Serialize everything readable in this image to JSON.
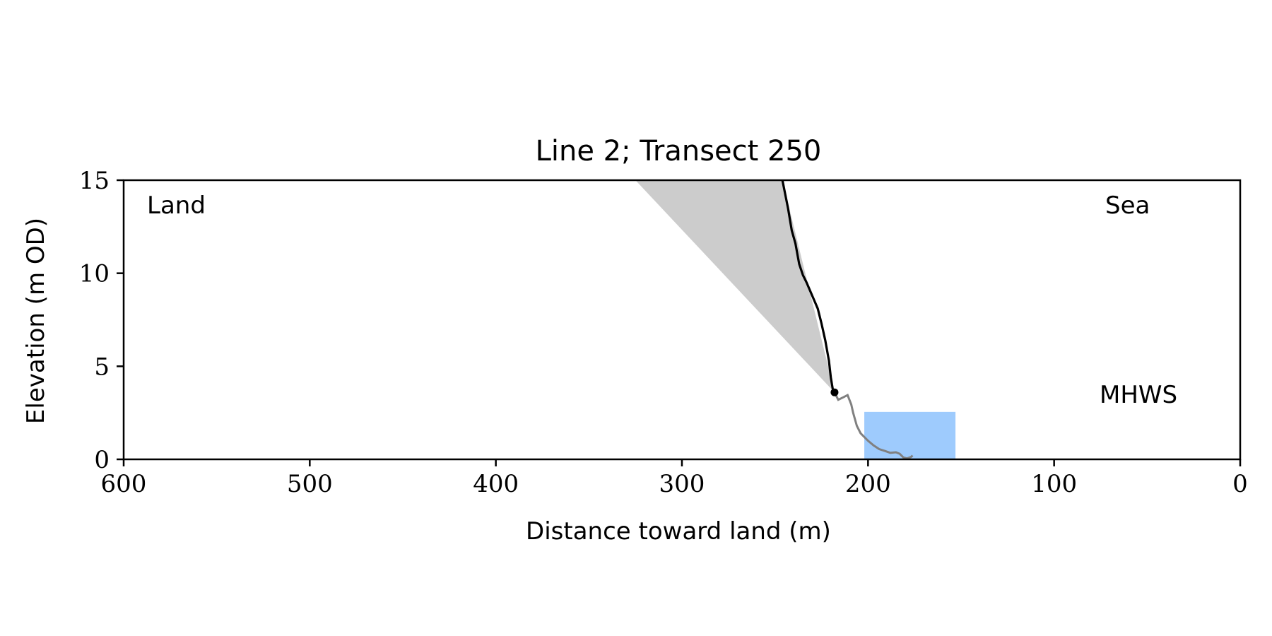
{
  "chart_data": {
    "type": "line",
    "title": "Line 2; Transect 250",
    "xlabel": "Distance toward land (m)",
    "ylabel": "Elevation (m OD)",
    "xlim": [
      600,
      0
    ],
    "ylim": [
      0,
      15
    ],
    "x_ticks": [
      "600",
      "500",
      "400",
      "300",
      "200",
      "100",
      "0"
    ],
    "y_ticks": [
      "0",
      "5",
      "10",
      "15"
    ],
    "grid": false,
    "annotations": {
      "land": "Land",
      "sea": "Sea",
      "mhws": "MHWS"
    },
    "colors": {
      "cliff": "#000000",
      "beach": "#808080",
      "wedge": "#cccccc",
      "water": "#9ecbfd",
      "mhws_text": "#6699cc"
    },
    "series": [
      {
        "name": "",
        "color": "#000000",
        "points": [
          [
            246,
            15
          ],
          [
            243,
            13.5
          ],
          [
            241,
            12.3
          ],
          [
            239,
            11.6
          ],
          [
            237,
            10.5
          ],
          [
            235,
            9.9
          ],
          [
            233,
            9.5
          ],
          [
            230,
            8.8
          ],
          [
            227,
            8.1
          ],
          [
            225,
            7.3
          ],
          [
            223,
            6.4
          ],
          [
            221,
            5.3
          ],
          [
            220,
            4.4
          ],
          [
            219,
            3.8
          ],
          [
            218,
            3.6
          ]
        ]
      },
      {
        "name": "",
        "color": "#808080",
        "points": [
          [
            218,
            3.6
          ],
          [
            216,
            3.2
          ],
          [
            213,
            3.35
          ],
          [
            211,
            3.45
          ],
          [
            209,
            2.95
          ],
          [
            208,
            2.5
          ],
          [
            206,
            1.8
          ],
          [
            204,
            1.4
          ],
          [
            202,
            1.2
          ],
          [
            200,
            1.0
          ],
          [
            197,
            0.75
          ],
          [
            194,
            0.55
          ],
          [
            191,
            0.45
          ],
          [
            188,
            0.35
          ],
          [
            185,
            0.38
          ],
          [
            183,
            0.3
          ],
          [
            181,
            0.1
          ],
          [
            179,
            0.05
          ],
          [
            177,
            0.12
          ],
          [
            176,
            0.2
          ]
        ]
      }
    ],
    "wedge_polygon": [
      [
        325,
        15
      ],
      [
        246,
        15
      ],
      [
        218,
        3.6
      ]
    ],
    "water_rect": {
      "x_from": 202,
      "x_to": 153,
      "y_from": 0,
      "y_to": 2.55
    },
    "marker": {
      "x": 218,
      "y": 3.6
    }
  }
}
